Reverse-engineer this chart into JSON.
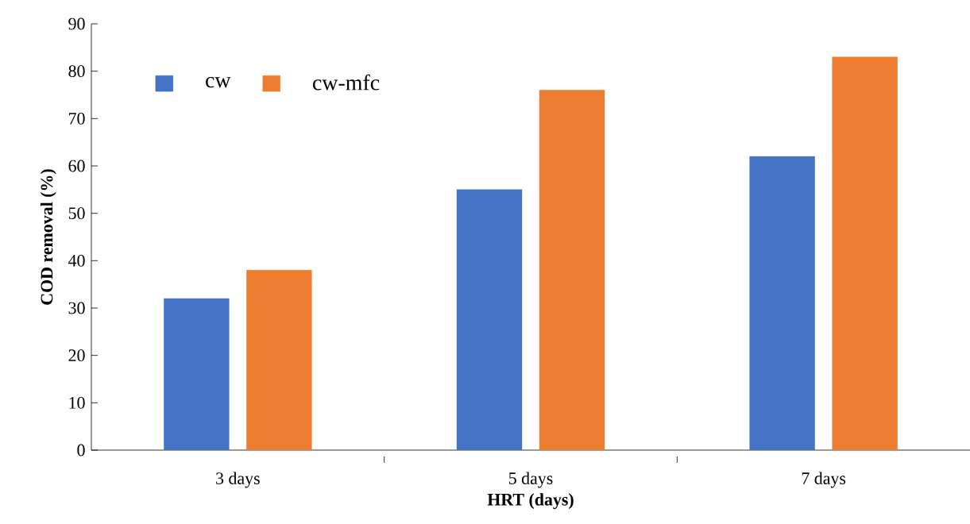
{
  "chart_data": {
    "type": "bar",
    "xlabel": "HRT (days)",
    "ylabel": "COD removal (%)",
    "categories": [
      "3 days",
      "5 days",
      "7 days"
    ],
    "series": [
      {
        "name": "cw",
        "color": "#4472c4",
        "values": [
          32,
          55,
          62
        ]
      },
      {
        "name": "cw-mfc",
        "color": "#ed7d31",
        "values": [
          38,
          76,
          83
        ]
      }
    ],
    "ylim": [
      0,
      90
    ],
    "yticks": [
      0,
      10,
      20,
      30,
      40,
      50,
      60,
      70,
      80,
      90
    ],
    "grid": false,
    "legend": "top left"
  }
}
